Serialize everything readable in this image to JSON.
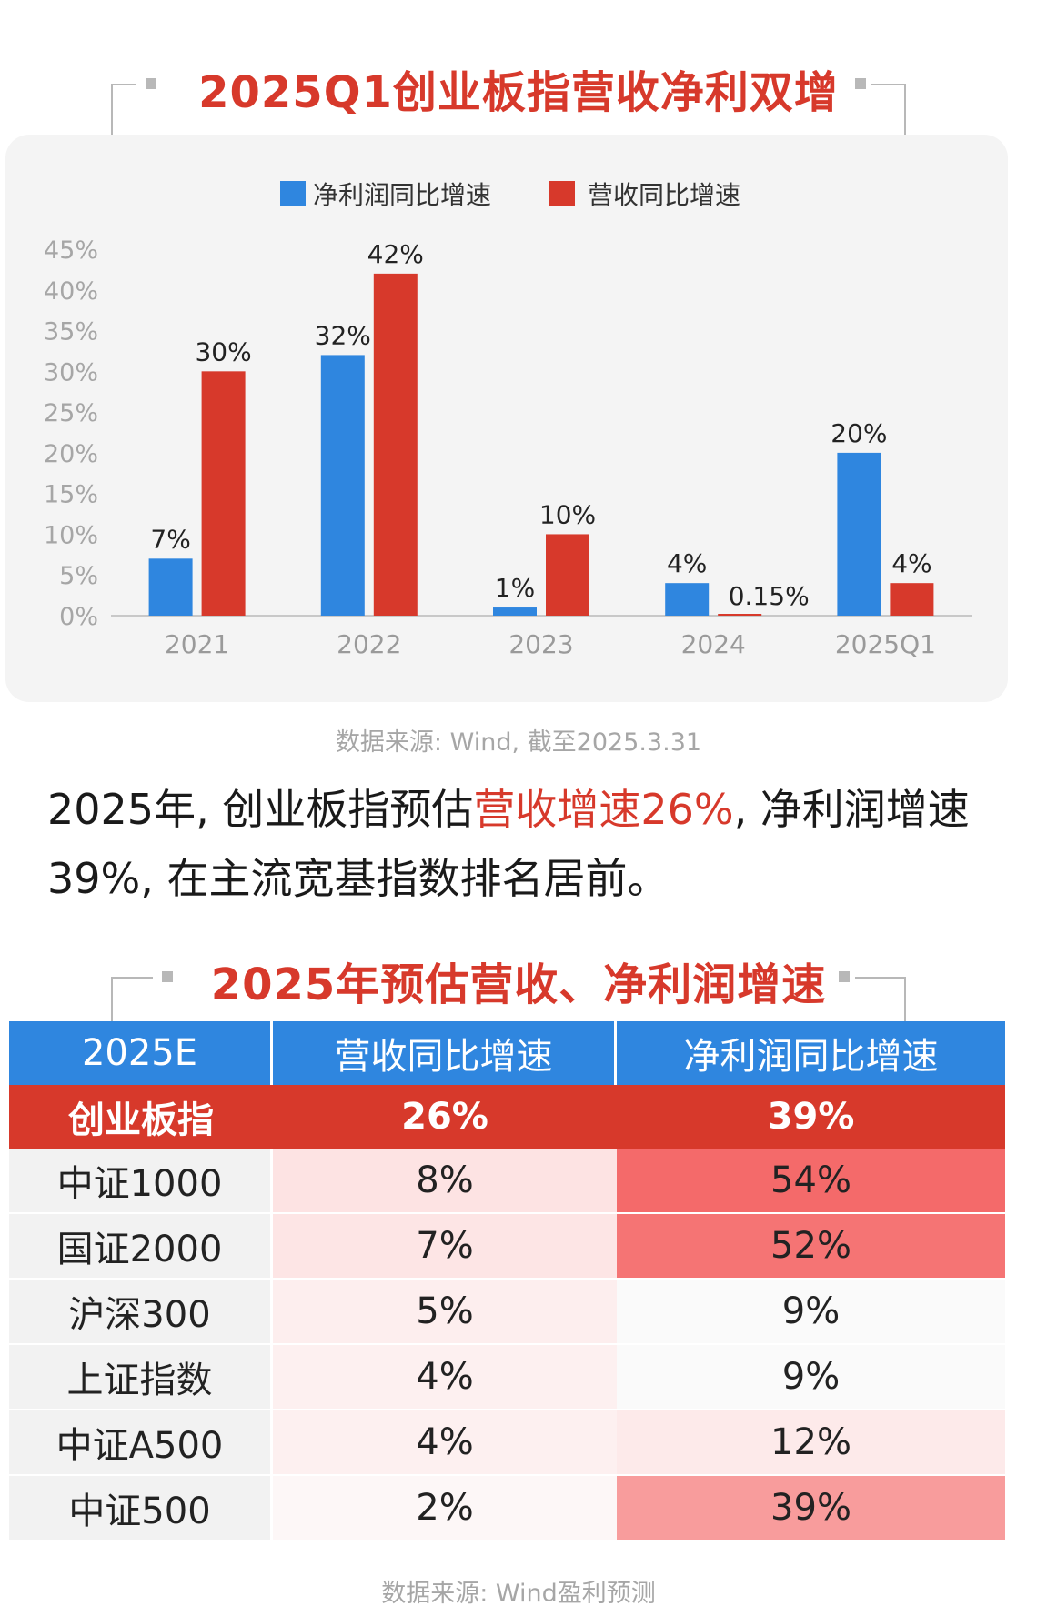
{
  "section1": {
    "title": "2025Q1创业板指营收净利双增"
  },
  "chart_data": {
    "type": "bar",
    "categories": [
      "2021",
      "2022",
      "2023",
      "2024",
      "2025Q1"
    ],
    "series": [
      {
        "name": "净利润同比增速",
        "color": "#2f86df",
        "values": [
          7,
          32,
          1,
          4,
          20
        ],
        "labels": [
          "7%",
          "32%",
          "1%",
          "4%",
          "20%"
        ]
      },
      {
        "name": "营收同比增速",
        "color": "#d7392b",
        "values": [
          30,
          42,
          10,
          0.15,
          4
        ],
        "labels": [
          "30%",
          "42%",
          "10%",
          "0.15%",
          "4%"
        ]
      }
    ],
    "yticks": [
      "0%",
      "5%",
      "10%",
      "15%",
      "20%",
      "25%",
      "30%",
      "35%",
      "40%",
      "45%"
    ],
    "ylim": [
      0,
      45
    ],
    "xlabel": "",
    "ylabel": "",
    "legend_position": "top"
  },
  "source1": "数据来源: Wind, 截至2025.3.31",
  "paragraph": {
    "part1": "2025年, 创业板指预估",
    "highlight": "营收增速26%",
    "part2": ", 净利润增速39%, 在主流宽基指数排名居前。"
  },
  "section2": {
    "title": "2025年预估营收、净利润增速"
  },
  "table": {
    "headers": [
      "2025E",
      "营收同比增速",
      "净利润同比增速"
    ],
    "highlight_row": {
      "name": "创业板指",
      "revenue": "26%",
      "profit": "39%"
    },
    "rows": [
      {
        "name": "中证1000",
        "revenue": "8%",
        "profit": "54%",
        "rev_bg": "#fde3e3",
        "prof_bg": "#f46a6a"
      },
      {
        "name": "国证2000",
        "revenue": "7%",
        "profit": "52%",
        "rev_bg": "#fde5e5",
        "prof_bg": "#f57474"
      },
      {
        "name": "沪深300",
        "revenue": "5%",
        "profit": "9%",
        "rev_bg": "#fdeeee",
        "prof_bg": "#fafafa"
      },
      {
        "name": "上证指数",
        "revenue": "4%",
        "profit": "9%",
        "rev_bg": "#fdf0f0",
        "prof_bg": "#fafafa"
      },
      {
        "name": "中证A500",
        "revenue": "4%",
        "profit": "12%",
        "rev_bg": "#fdf0f0",
        "prof_bg": "#fdeaea"
      },
      {
        "name": "中证500",
        "revenue": "2%",
        "profit": "39%",
        "rev_bg": "#fdf7f7",
        "prof_bg": "#f89c9c"
      }
    ]
  },
  "source2": "数据来源: Wind盈利预测"
}
